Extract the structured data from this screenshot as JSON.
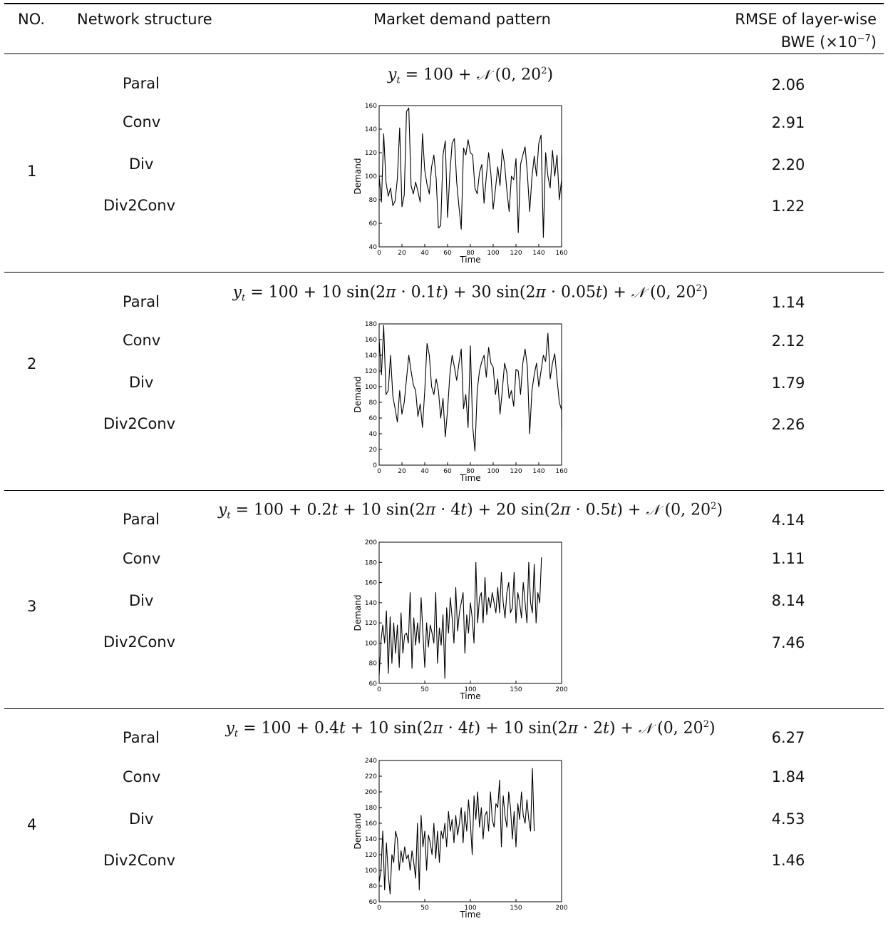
{
  "header": {
    "no": "NO.",
    "structure": "Network structure",
    "pattern": "Market demand pattern",
    "rmse_line1": "RMSE of layer-wise",
    "rmse_line2": "BWE (×10",
    "rmse_exp": "−7",
    "rmse_close": ")"
  },
  "groups": [
    {
      "no": "1",
      "formula": "y_t = 100 + N(0, 20^2)",
      "rows": [
        {
          "structure": "Paral",
          "rmse": "2.06"
        },
        {
          "structure": "Conv",
          "rmse": "2.91"
        },
        {
          "structure": "Div",
          "rmse": "2.20"
        },
        {
          "structure": "Div2Conv",
          "rmse": "1.22"
        }
      ]
    },
    {
      "no": "2",
      "formula": "y_t = 100 + 10 sin(2π · 0.1t) + 30 sin(2π · 0.05t) + N(0, 20^2)",
      "rows": [
        {
          "structure": "Paral",
          "rmse": "1.14"
        },
        {
          "structure": "Conv",
          "rmse": "2.12"
        },
        {
          "structure": "Div",
          "rmse": "1.79"
        },
        {
          "structure": "Div2Conv",
          "rmse": "2.26"
        }
      ]
    },
    {
      "no": "3",
      "formula": "y_t = 100 + 0.2t + 10 sin(2π · 4t) + 20 sin(2π · 0.5t) + N(0, 20^2)",
      "rows": [
        {
          "structure": "Paral",
          "rmse": "4.14"
        },
        {
          "structure": "Conv",
          "rmse": "1.11"
        },
        {
          "structure": "Div",
          "rmse": "8.14"
        },
        {
          "structure": "Div2Conv",
          "rmse": "7.46"
        }
      ]
    },
    {
      "no": "4",
      "formula": "y_t = 100 + 0.4t + 10 sin(2π · 4t) + 10 sin(2π · 2t) + N(0, 20^2)",
      "rows": [
        {
          "structure": "Paral",
          "rmse": "6.27"
        },
        {
          "structure": "Conv",
          "rmse": "1.84"
        },
        {
          "structure": "Div",
          "rmse": "4.53"
        },
        {
          "structure": "Div2Conv",
          "rmse": "1.46"
        }
      ]
    }
  ],
  "chart_data": [
    {
      "type": "line",
      "xlabel": "Time",
      "ylabel": "Demand",
      "xlim": [
        0,
        160
      ],
      "ylim": [
        40,
        160
      ],
      "xticks": [
        "0",
        "20",
        "40",
        "60",
        "80",
        "100",
        "120",
        "140",
        "160"
      ],
      "yticks": [
        "40",
        "60",
        "80",
        "100",
        "120",
        "140",
        "160"
      ],
      "x_start": 0,
      "x_step": 2,
      "values": [
        100,
        78,
        136,
        95,
        83,
        90,
        75,
        79,
        98,
        141,
        74,
        84,
        155,
        158,
        92,
        85,
        95,
        87,
        78,
        136,
        105,
        93,
        85,
        108,
        118,
        98,
        56,
        58,
        118,
        130,
        65,
        102,
        128,
        132,
        95,
        74,
        55,
        124,
        118,
        131,
        120,
        118,
        90,
        85,
        103,
        110,
        77,
        100,
        120,
        102,
        72,
        89,
        108,
        92,
        123,
        110,
        88,
        70,
        100,
        97,
        115,
        52,
        110,
        118,
        125,
        102,
        70,
        99,
        117,
        100,
        128,
        135,
        48,
        120,
        100,
        90,
        122,
        100,
        118,
        80,
        97,
        107,
        117,
        82
      ]
    },
    {
      "type": "line",
      "xlabel": "Time",
      "ylabel": "Demand",
      "xlim": [
        0,
        160
      ],
      "ylim": [
        0,
        180
      ],
      "xticks": [
        "0",
        "20",
        "40",
        "60",
        "80",
        "100",
        "120",
        "140",
        "160"
      ],
      "yticks": [
        "0",
        "20",
        "40",
        "60",
        "80",
        "100",
        "120",
        "140",
        "160",
        "180"
      ],
      "x_start": 0,
      "x_step": 2,
      "values": [
        160,
        115,
        178,
        90,
        95,
        140,
        88,
        72,
        55,
        95,
        65,
        80,
        110,
        140,
        120,
        102,
        95,
        62,
        78,
        48,
        95,
        155,
        140,
        100,
        90,
        110,
        95,
        60,
        85,
        36,
        70,
        115,
        140,
        125,
        108,
        130,
        148,
        72,
        90,
        48,
        152,
        50,
        18,
        95,
        120,
        132,
        140,
        112,
        150,
        130,
        125,
        90,
        110,
        65,
        95,
        130,
        118,
        85,
        95,
        75,
        122,
        120,
        90,
        130,
        148,
        125,
        40,
        95,
        115,
        130,
        100,
        120,
        140,
        132,
        168,
        110,
        130,
        142,
        110,
        80,
        70,
        48,
        120,
        78
      ]
    },
    {
      "type": "line",
      "xlabel": "Time",
      "ylabel": "Demand",
      "xlim": [
        0,
        200
      ],
      "ylim": [
        60,
        200
      ],
      "xticks": [
        "0",
        "50",
        "100",
        "150",
        "200"
      ],
      "yticks": [
        "60",
        "80",
        "100",
        "120",
        "140",
        "160",
        "180",
        "200"
      ],
      "x_start": 0,
      "x_step": 2,
      "values": [
        68,
        102,
        118,
        100,
        132,
        70,
        126,
        80,
        120,
        90,
        118,
        76,
        130,
        90,
        108,
        110,
        100,
        150,
        75,
        125,
        98,
        120,
        100,
        145,
        110,
        76,
        120,
        96,
        118,
        110,
        100,
        150,
        80,
        115,
        98,
        128,
        65,
        135,
        110,
        145,
        125,
        100,
        155,
        112,
        130,
        140,
        150,
        90,
        128,
        110,
        140,
        125,
        100,
        180,
        120,
        145,
        150,
        120,
        165,
        128,
        145,
        135,
        150,
        140,
        130,
        155,
        130,
        170,
        140,
        125,
        150,
        160,
        130,
        135,
        170,
        120,
        150,
        140,
        125,
        160,
        140,
        120,
        180,
        140,
        130,
        178,
        120,
        150,
        140,
        185
      ]
    },
    {
      "type": "line",
      "xlabel": "Time",
      "ylabel": "Demand",
      "xlim": [
        0,
        200
      ],
      "ylim": [
        60,
        240
      ],
      "xticks": [
        "0",
        "50",
        "100",
        "150",
        "200"
      ],
      "yticks": [
        "60",
        "80",
        "100",
        "120",
        "140",
        "160",
        "180",
        "200",
        "220",
        "240"
      ],
      "x_start": 0,
      "x_step": 2,
      "values": [
        85,
        100,
        150,
        75,
        135,
        95,
        70,
        120,
        110,
        150,
        140,
        100,
        125,
        110,
        130,
        115,
        120,
        100,
        125,
        110,
        90,
        160,
        75,
        170,
        130,
        150,
        100,
        145,
        135,
        120,
        160,
        115,
        150,
        110,
        150,
        140,
        160,
        130,
        175,
        150,
        165,
        135,
        170,
        145,
        160,
        180,
        135,
        175,
        150,
        190,
        160,
        120,
        195,
        165,
        200,
        155,
        180,
        140,
        170,
        175,
        150,
        200,
        165,
        155,
        185,
        180,
        215,
        130,
        195,
        170,
        155,
        200,
        180,
        140,
        175,
        130,
        185,
        165,
        200,
        170,
        160,
        190,
        165,
        150,
        230,
        150
      ]
    }
  ]
}
